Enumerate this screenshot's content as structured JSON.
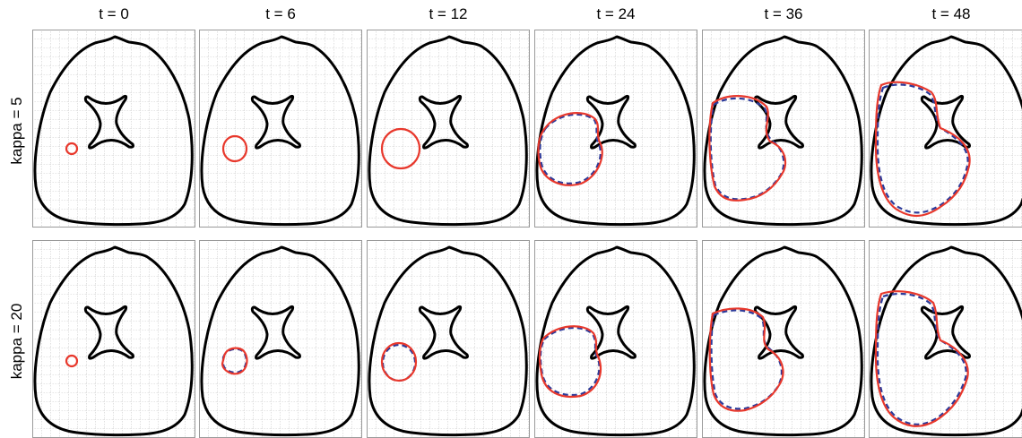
{
  "figure": {
    "columns": [
      {
        "label": "t = 0"
      },
      {
        "label": "t = 6"
      },
      {
        "label": "t = 12"
      },
      {
        "label": "t = 24"
      },
      {
        "label": "t = 36"
      },
      {
        "label": "t = 48"
      }
    ],
    "rows": [
      {
        "label": "kappa = 5"
      },
      {
        "label": "kappa = 20"
      }
    ],
    "colors": {
      "boundary": "#000000",
      "simulation_contour": "#e8382c",
      "reference_contour": "#2b3a9a",
      "grid": "#9a9a9a"
    },
    "icons": {
      "outer_boundary": "head-cross-section-outline",
      "inner_obstacle": "x-shaped-ventricle-outline"
    }
  }
}
